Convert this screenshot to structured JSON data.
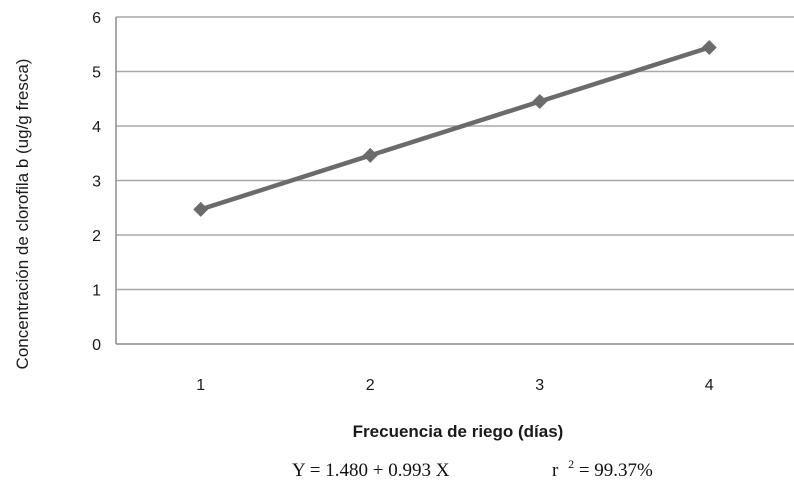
{
  "chart_data": {
    "type": "line",
    "categories": [
      "1",
      "2",
      "3",
      "4"
    ],
    "series": [
      {
        "values": [
          2.47,
          3.46,
          4.45,
          5.44
        ]
      }
    ],
    "xlabel": "Frecuencia de riego (días)",
    "ylabel": "Concentración de clorofila b (ug/g fresca)",
    "ylim": [
      0,
      6
    ],
    "yticks": [
      "0",
      "1",
      "2",
      "3",
      "4",
      "5",
      "6"
    ],
    "grid": true,
    "legend": "none",
    "line_color": "#6b6b6b",
    "grid_color": "#a8a8a8",
    "annotations": {
      "equation": "Y = 1.480 + 0.993 X",
      "r2_label": "r",
      "r2_exp": "2",
      "r2_value": "= 99.37%"
    }
  }
}
